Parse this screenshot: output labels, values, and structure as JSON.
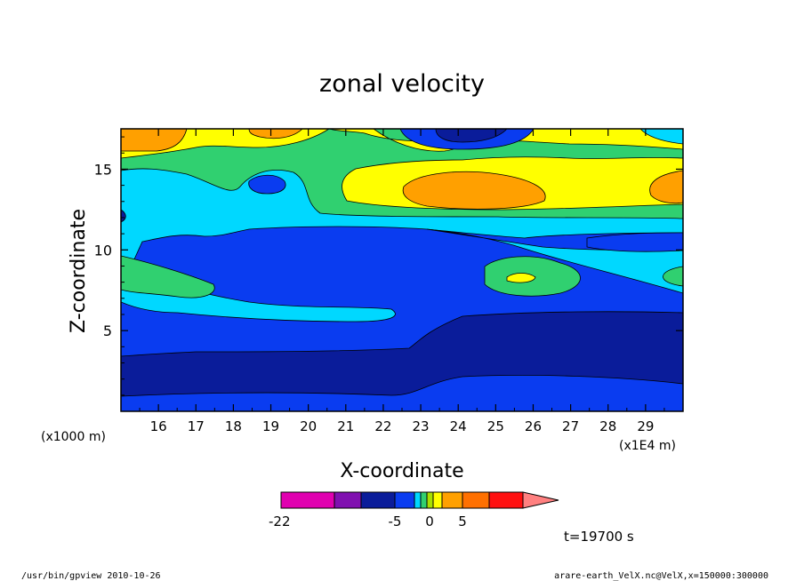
{
  "chart_data": {
    "type": "heatmap",
    "title": "zonal velocity",
    "xlabel": "X-coordinate",
    "ylabel": "Z-coordinate",
    "x_unit_label": "(x1E4 m)",
    "y_unit_label": "(x1000 m)",
    "x_ticks": [
      "16",
      "17",
      "18",
      "19",
      "20",
      "21",
      "22",
      "23",
      "24",
      "25",
      "26",
      "27",
      "28",
      "29"
    ],
    "y_ticks": [
      "5",
      "10",
      "15"
    ],
    "xlim": [
      15.0,
      30.0
    ],
    "ylim": [
      0.0,
      17.5
    ],
    "colorbar": {
      "tick_labels": [
        "-22",
        "-5",
        "0",
        "5"
      ],
      "colors": [
        "#e000b0",
        "#8010b0",
        "#0a1c9a",
        "#0a3cf0",
        "#00d8ff",
        "#30d070",
        "#a8e000",
        "#ffff00",
        "#ffa000",
        "#ff7000",
        "#ff1010",
        "#ff8080"
      ]
    },
    "time_label": "t=19700 s",
    "footer_left": "/usr/bin/gpview  2010-10-26",
    "footer_right": "arare-earth_VelX.nc@VelX,x=150000:300000"
  }
}
